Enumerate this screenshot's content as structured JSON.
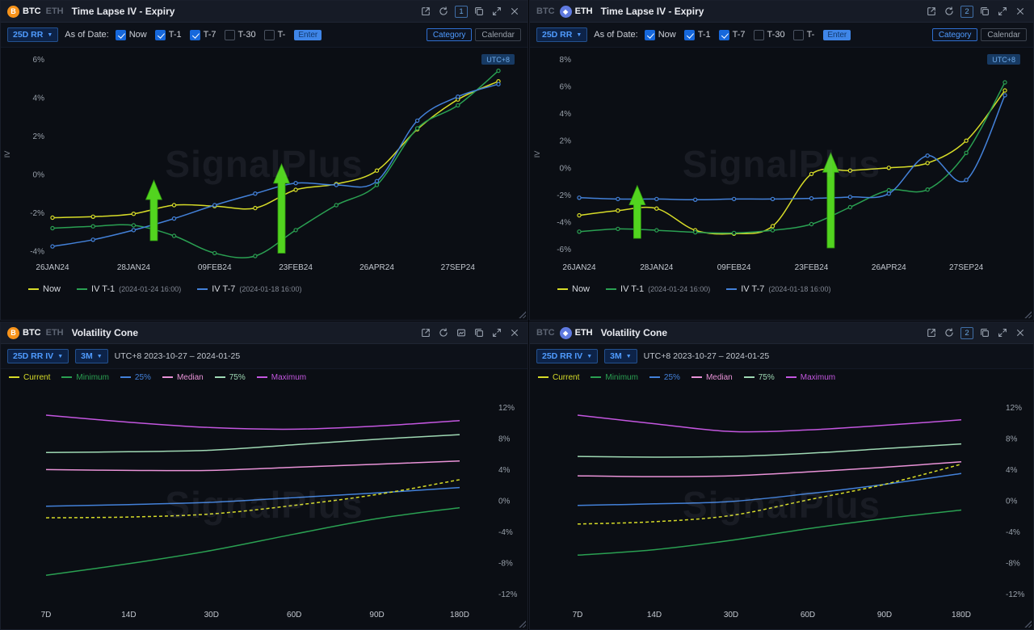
{
  "watermark": "SignalPlus",
  "symbols": {
    "btc": "B",
    "eth": "◆"
  },
  "panels": {
    "tl": {
      "coins": [
        {
          "label": "BTC",
          "active": true
        },
        {
          "label": "ETH",
          "active": false
        }
      ],
      "title": "Time Lapse IV - Expiry",
      "badge": "1",
      "header_icons": [
        "open-external",
        "refresh",
        "counter-badge",
        "duplicate",
        "expand",
        "close"
      ],
      "toolbar": {
        "dropdown": "25D RR",
        "as_of": "As of Date:",
        "checkboxes": [
          {
            "label": "Now",
            "checked": true
          },
          {
            "label": "T-1",
            "checked": true
          },
          {
            "label": "T-7",
            "checked": true
          },
          {
            "label": "T-30",
            "checked": false
          },
          {
            "label": "T-",
            "checked": false,
            "input": "Enter"
          }
        ],
        "category": "Category",
        "calendar": "Calendar"
      },
      "utc": "UTC+8",
      "legend": [
        {
          "label": "Now",
          "time": "",
          "color": "#d7dc28"
        },
        {
          "label": "IV T-1",
          "time": "(2024-01-24 16:00)",
          "color": "#2aa052"
        },
        {
          "label": "IV T-7",
          "time": "(2024-01-18 16:00)",
          "color": "#4381d9"
        }
      ],
      "chart_data": {
        "type": "line",
        "ylabel": "IV",
        "x_tick_labels": [
          "26JAN24",
          "28JAN24",
          "09FEB24",
          "23FEB24",
          "26APR24",
          "27SEP24"
        ],
        "x_tick_index": [
          0,
          2,
          4,
          6,
          8,
          10
        ],
        "n_points": 12,
        "ylim": [
          -4.25,
          6.35
        ],
        "yticks": [
          6,
          4,
          2,
          0,
          -2,
          -4
        ],
        "series": [
          {
            "name": "Now",
            "color": "#d7dc28",
            "values": [
              -2.25,
              -2.2,
              -2.05,
              -1.6,
              -1.65,
              -1.75,
              -0.8,
              -0.5,
              0.2,
              2.35,
              3.9,
              4.85
            ]
          },
          {
            "name": "IV T-1",
            "color": "#2aa052",
            "values": [
              -2.8,
              -2.7,
              -2.65,
              -3.2,
              -4.1,
              -4.25,
              -2.9,
              -1.6,
              -0.55,
              2.4,
              3.6,
              5.4
            ]
          },
          {
            "name": "IV T-7",
            "color": "#4381d9",
            "values": [
              -3.75,
              -3.4,
              -2.9,
              -2.3,
              -1.6,
              -1.0,
              -0.45,
              -0.55,
              -0.35,
              2.8,
              4.05,
              4.7
            ]
          }
        ],
        "arrows": [
          {
            "x": 2.5,
            "from": -3.45,
            "to": -0.3
          },
          {
            "x": 5.65,
            "from": -4.1,
            "to": 0.55
          }
        ],
        "arrow_color": "#52d41f"
      }
    },
    "tr": {
      "coins": [
        {
          "label": "BTC",
          "active": false
        },
        {
          "label": "ETH",
          "active": true
        }
      ],
      "title": "Time Lapse IV - Expiry",
      "badge": "2",
      "header_icons": [
        "open-external",
        "refresh",
        "counter-badge",
        "duplicate",
        "expand",
        "close"
      ],
      "toolbar": {
        "dropdown": "25D RR",
        "as_of": "As of Date:",
        "checkboxes": [
          {
            "label": "Now",
            "checked": true
          },
          {
            "label": "T-1",
            "checked": true
          },
          {
            "label": "T-7",
            "checked": true
          },
          {
            "label": "T-30",
            "checked": false
          },
          {
            "label": "T-",
            "checked": false,
            "input": "Enter"
          }
        ],
        "category": "Category",
        "calendar": "Calendar"
      },
      "utc": "UTC+8",
      "legend": [
        {
          "label": "Now",
          "time": "",
          "color": "#d7dc28"
        },
        {
          "label": "IV T-1",
          "time": "(2024-01-24 16:00)",
          "color": "#2aa052"
        },
        {
          "label": "IV T-7",
          "time": "(2024-01-18 16:00)",
          "color": "#4381d9"
        }
      ],
      "chart_data": {
        "type": "line",
        "ylabel": "IV",
        "x_tick_labels": [
          "26JAN24",
          "28JAN24",
          "09FEB24",
          "23FEB24",
          "26APR24",
          "27SEP24"
        ],
        "x_tick_index": [
          0,
          2,
          4,
          6,
          8,
          10
        ],
        "n_points": 12,
        "ylim": [
          -6.5,
          8.5
        ],
        "yticks": [
          8,
          6,
          4,
          2,
          0,
          -2,
          -4,
          -6
        ],
        "series": [
          {
            "name": "Now",
            "color": "#d7dc28",
            "values": [
              -3.5,
              -3.15,
              -3.0,
              -4.6,
              -4.85,
              -4.3,
              -0.45,
              -0.2,
              0.0,
              0.35,
              2.0,
              5.7
            ]
          },
          {
            "name": "IV T-1",
            "color": "#2aa052",
            "values": [
              -4.7,
              -4.5,
              -4.6,
              -4.75,
              -4.8,
              -4.6,
              -4.15,
              -2.9,
              -1.65,
              -1.6,
              1.1,
              6.3
            ]
          },
          {
            "name": "IV T-7",
            "color": "#4381d9",
            "values": [
              -2.2,
              -2.3,
              -2.3,
              -2.35,
              -2.3,
              -2.3,
              -2.25,
              -2.15,
              -1.9,
              0.9,
              -0.9,
              5.35
            ]
          }
        ],
        "arrows": [
          {
            "x": 1.5,
            "from": -5.2,
            "to": -1.3
          },
          {
            "x": 6.5,
            "from": -5.9,
            "to": 1.1
          }
        ],
        "arrow_color": "#52d41f"
      }
    },
    "bl": {
      "coins": [
        {
          "label": "BTC",
          "active": true
        },
        {
          "label": "ETH",
          "active": false
        }
      ],
      "title": "Volatility Cone",
      "header_icons": [
        "open-external",
        "refresh",
        "save-image",
        "duplicate",
        "expand",
        "close"
      ],
      "toolbar": {
        "dropdown1": "25D RR IV",
        "dropdown2": "3M",
        "range": "UTC+8 2023-10-27 – 2024-01-25"
      },
      "legend": [
        {
          "label": "Current",
          "color": "#d7dc28"
        },
        {
          "label": "Minimum",
          "color": "#2aa052"
        },
        {
          "label": "25%",
          "color": "#4381d9"
        },
        {
          "label": "Median",
          "color": "#ea93d8"
        },
        {
          "label": "75%",
          "color": "#9fd9b4"
        },
        {
          "label": "Maximum",
          "color": "#c457e0"
        }
      ],
      "chart_data": {
        "type": "line",
        "x_tick_labels": [
          "7D",
          "14D",
          "30D",
          "60D",
          "90D",
          "180D"
        ],
        "x_tick_index": [
          0,
          1,
          2,
          3,
          4,
          5
        ],
        "n_points": 6,
        "ylim": [
          -13.2,
          13.6
        ],
        "yticks": [
          12,
          8,
          4,
          0,
          -4,
          -8,
          -12
        ],
        "series": [
          {
            "name": "Maximum",
            "color": "#c457e0",
            "values": [
              11.0,
              10.1,
              9.4,
              9.2,
              9.6,
              10.3
            ]
          },
          {
            "name": "75%",
            "color": "#9fd9b4",
            "values": [
              6.2,
              6.3,
              6.5,
              7.2,
              7.9,
              8.5
            ]
          },
          {
            "name": "Median",
            "color": "#ea93d8",
            "values": [
              4.0,
              3.9,
              3.9,
              4.3,
              4.7,
              5.1
            ]
          },
          {
            "name": "25%",
            "color": "#4381d9",
            "values": [
              -0.7,
              -0.5,
              -0.2,
              0.4,
              1.0,
              1.7
            ]
          },
          {
            "name": "Current",
            "color": "#d7dc28",
            "dash": true,
            "values": [
              -2.2,
              -2.1,
              -1.7,
              -0.6,
              0.8,
              2.7
            ]
          },
          {
            "name": "Minimum",
            "color": "#2aa052",
            "values": [
              -9.6,
              -8.1,
              -6.4,
              -4.3,
              -2.3,
              -0.9
            ]
          }
        ]
      }
    },
    "br": {
      "coins": [
        {
          "label": "BTC",
          "active": false
        },
        {
          "label": "ETH",
          "active": true
        }
      ],
      "title": "Volatility Cone",
      "badge": "2",
      "header_icons": [
        "open-external",
        "refresh",
        "counter-badge",
        "duplicate",
        "expand",
        "close"
      ],
      "toolbar": {
        "dropdown1": "25D RR IV",
        "dropdown2": "3M",
        "range": "UTC+8 2023-10-27 – 2024-01-25"
      },
      "legend": [
        {
          "label": "Current",
          "color": "#d7dc28"
        },
        {
          "label": "Minimum",
          "color": "#2aa052"
        },
        {
          "label": "25%",
          "color": "#4381d9"
        },
        {
          "label": "Median",
          "color": "#ea93d8"
        },
        {
          "label": "75%",
          "color": "#9fd9b4"
        },
        {
          "label": "Maximum",
          "color": "#c457e0"
        }
      ],
      "chart_data": {
        "type": "line",
        "x_tick_labels": [
          "7D",
          "14D",
          "30D",
          "60D",
          "90D",
          "180D"
        ],
        "x_tick_index": [
          0,
          1,
          2,
          3,
          4,
          5
        ],
        "n_points": 6,
        "ylim": [
          -13.2,
          13.6
        ],
        "yticks": [
          12,
          8,
          4,
          0,
          -4,
          -8,
          -12
        ],
        "series": [
          {
            "name": "Maximum",
            "color": "#c457e0",
            "values": [
              11.0,
              9.9,
              8.9,
              9.1,
              9.7,
              10.4
            ]
          },
          {
            "name": "75%",
            "color": "#9fd9b4",
            "values": [
              5.7,
              5.6,
              5.7,
              6.1,
              6.7,
              7.3
            ]
          },
          {
            "name": "Median",
            "color": "#ea93d8",
            "values": [
              3.2,
              3.1,
              3.2,
              3.7,
              4.3,
              5.0
            ]
          },
          {
            "name": "25%",
            "color": "#4381d9",
            "values": [
              -0.6,
              -0.4,
              -0.1,
              0.9,
              2.1,
              3.5
            ]
          },
          {
            "name": "Current",
            "color": "#d7dc28",
            "dash": true,
            "values": [
              -3.0,
              -2.7,
              -1.9,
              0.1,
              2.1,
              4.7
            ]
          },
          {
            "name": "Minimum",
            "color": "#2aa052",
            "values": [
              -7.0,
              -6.3,
              -5.1,
              -3.6,
              -2.3,
              -1.2
            ]
          }
        ]
      }
    }
  }
}
